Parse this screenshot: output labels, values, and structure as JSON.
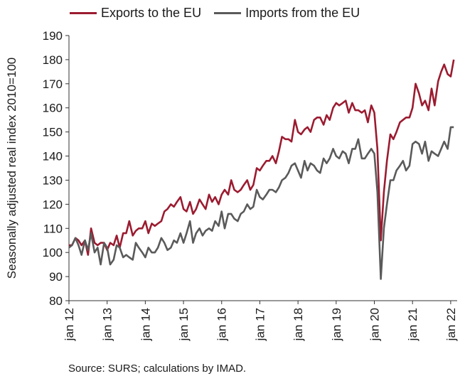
{
  "chart_data": {
    "type": "line",
    "ylabel": "Seasonally adjusted real index 2010=100",
    "ylim": [
      80,
      190
    ],
    "yticks": [
      80,
      90,
      100,
      110,
      120,
      130,
      140,
      150,
      160,
      170,
      180,
      190
    ],
    "xlim": [
      2012.0,
      2022.17
    ],
    "xticks": [
      {
        "label": "jan 12",
        "x": 2012
      },
      {
        "label": "jan 13",
        "x": 2013
      },
      {
        "label": "jan 14",
        "x": 2014
      },
      {
        "label": "jan 15",
        "x": 2015
      },
      {
        "label": "jan 16",
        "x": 2016
      },
      {
        "label": "jan 17",
        "x": 2017
      },
      {
        "label": "jan 18",
        "x": 2018
      },
      {
        "label": "jan 19",
        "x": 2019
      },
      {
        "label": "jan 20",
        "x": 2020
      },
      {
        "label": "jan 21",
        "x": 2021
      },
      {
        "label": "jan 22",
        "x": 2022
      }
    ],
    "grid": false,
    "legend_position": "top",
    "series": [
      {
        "name": "Exports to the EU",
        "color": "#9b1b30",
        "points": [
          [
            2012.0,
            103
          ],
          [
            2012.08,
            103
          ],
          [
            2012.17,
            106
          ],
          [
            2012.25,
            105
          ],
          [
            2012.33,
            103
          ],
          [
            2012.42,
            105
          ],
          [
            2012.5,
            99
          ],
          [
            2012.58,
            110
          ],
          [
            2012.67,
            104
          ],
          [
            2012.75,
            103
          ],
          [
            2012.83,
            104
          ],
          [
            2012.92,
            104
          ],
          [
            2013.0,
            101
          ],
          [
            2013.08,
            104
          ],
          [
            2013.17,
            103
          ],
          [
            2013.25,
            107
          ],
          [
            2013.33,
            102
          ],
          [
            2013.42,
            108
          ],
          [
            2013.5,
            108
          ],
          [
            2013.58,
            113
          ],
          [
            2013.67,
            107
          ],
          [
            2013.75,
            109
          ],
          [
            2013.83,
            110
          ],
          [
            2013.92,
            110
          ],
          [
            2014.0,
            113
          ],
          [
            2014.08,
            108
          ],
          [
            2014.17,
            112
          ],
          [
            2014.25,
            111
          ],
          [
            2014.33,
            112
          ],
          [
            2014.42,
            113
          ],
          [
            2014.5,
            117
          ],
          [
            2014.58,
            118
          ],
          [
            2014.67,
            120
          ],
          [
            2014.75,
            119
          ],
          [
            2014.83,
            121
          ],
          [
            2014.92,
            123
          ],
          [
            2015.0,
            118
          ],
          [
            2015.08,
            117
          ],
          [
            2015.17,
            121
          ],
          [
            2015.25,
            116
          ],
          [
            2015.33,
            118
          ],
          [
            2015.42,
            122
          ],
          [
            2015.5,
            120
          ],
          [
            2015.58,
            118
          ],
          [
            2015.67,
            124
          ],
          [
            2015.75,
            121
          ],
          [
            2015.83,
            123
          ],
          [
            2015.92,
            120
          ],
          [
            2016.0,
            124
          ],
          [
            2016.08,
            126
          ],
          [
            2016.17,
            124
          ],
          [
            2016.25,
            130
          ],
          [
            2016.33,
            126
          ],
          [
            2016.42,
            125
          ],
          [
            2016.5,
            126
          ],
          [
            2016.58,
            128
          ],
          [
            2016.67,
            130
          ],
          [
            2016.75,
            126
          ],
          [
            2016.83,
            128
          ],
          [
            2016.92,
            135
          ],
          [
            2017.0,
            134
          ],
          [
            2017.08,
            136
          ],
          [
            2017.17,
            138
          ],
          [
            2017.25,
            138
          ],
          [
            2017.33,
            140
          ],
          [
            2017.42,
            137
          ],
          [
            2017.5,
            142
          ],
          [
            2017.58,
            148
          ],
          [
            2017.67,
            147
          ],
          [
            2017.75,
            147
          ],
          [
            2017.83,
            146
          ],
          [
            2017.92,
            155
          ],
          [
            2018.0,
            150
          ],
          [
            2018.08,
            149
          ],
          [
            2018.17,
            151
          ],
          [
            2018.25,
            152
          ],
          [
            2018.33,
            150
          ],
          [
            2018.42,
            155
          ],
          [
            2018.5,
            156
          ],
          [
            2018.58,
            156
          ],
          [
            2018.67,
            153
          ],
          [
            2018.75,
            157
          ],
          [
            2018.83,
            155
          ],
          [
            2018.92,
            160
          ],
          [
            2019.0,
            162
          ],
          [
            2019.08,
            161
          ],
          [
            2019.17,
            162
          ],
          [
            2019.25,
            163
          ],
          [
            2019.33,
            158
          ],
          [
            2019.42,
            162
          ],
          [
            2019.5,
            159
          ],
          [
            2019.58,
            159
          ],
          [
            2019.67,
            158
          ],
          [
            2019.75,
            159
          ],
          [
            2019.83,
            154
          ],
          [
            2019.92,
            161
          ],
          [
            2020.0,
            158
          ],
          [
            2020.08,
            143
          ],
          [
            2020.17,
            105
          ],
          [
            2020.25,
            125
          ],
          [
            2020.33,
            138
          ],
          [
            2020.42,
            149
          ],
          [
            2020.5,
            147
          ],
          [
            2020.58,
            150
          ],
          [
            2020.67,
            154
          ],
          [
            2020.75,
            155
          ],
          [
            2020.83,
            156
          ],
          [
            2020.92,
            156
          ],
          [
            2021.0,
            160
          ],
          [
            2021.08,
            170
          ],
          [
            2021.17,
            166
          ],
          [
            2021.25,
            161
          ],
          [
            2021.33,
            163
          ],
          [
            2021.42,
            159
          ],
          [
            2021.5,
            168
          ],
          [
            2021.58,
            161
          ],
          [
            2021.67,
            171
          ],
          [
            2021.75,
            175
          ],
          [
            2021.83,
            178
          ],
          [
            2021.92,
            174
          ],
          [
            2022.0,
            173
          ],
          [
            2022.08,
            180
          ]
        ]
      },
      {
        "name": "Imports from the EU",
        "color": "#5a5a5a",
        "points": [
          [
            2012.0,
            102
          ],
          [
            2012.08,
            103
          ],
          [
            2012.17,
            106
          ],
          [
            2012.25,
            103
          ],
          [
            2012.33,
            99
          ],
          [
            2012.42,
            105
          ],
          [
            2012.5,
            101
          ],
          [
            2012.58,
            108
          ],
          [
            2012.67,
            100
          ],
          [
            2012.75,
            102
          ],
          [
            2012.83,
            95
          ],
          [
            2012.92,
            104
          ],
          [
            2013.0,
            102
          ],
          [
            2013.08,
            95
          ],
          [
            2013.17,
            97
          ],
          [
            2013.25,
            103
          ],
          [
            2013.33,
            102
          ],
          [
            2013.42,
            98
          ],
          [
            2013.5,
            99
          ],
          [
            2013.58,
            98
          ],
          [
            2013.67,
            97
          ],
          [
            2013.75,
            104
          ],
          [
            2013.83,
            102
          ],
          [
            2013.92,
            100
          ],
          [
            2014.0,
            98
          ],
          [
            2014.08,
            102
          ],
          [
            2014.17,
            100
          ],
          [
            2014.25,
            100
          ],
          [
            2014.33,
            102
          ],
          [
            2014.42,
            106
          ],
          [
            2014.5,
            104
          ],
          [
            2014.58,
            101
          ],
          [
            2014.67,
            102
          ],
          [
            2014.75,
            105
          ],
          [
            2014.83,
            104
          ],
          [
            2014.92,
            108
          ],
          [
            2015.0,
            104
          ],
          [
            2015.08,
            108
          ],
          [
            2015.17,
            113
          ],
          [
            2015.25,
            104
          ],
          [
            2015.33,
            108
          ],
          [
            2015.42,
            110
          ],
          [
            2015.5,
            107
          ],
          [
            2015.58,
            109
          ],
          [
            2015.67,
            110
          ],
          [
            2015.75,
            109
          ],
          [
            2015.83,
            113
          ],
          [
            2015.92,
            111
          ],
          [
            2016.0,
            117
          ],
          [
            2016.08,
            110
          ],
          [
            2016.17,
            116
          ],
          [
            2016.25,
            116
          ],
          [
            2016.33,
            114
          ],
          [
            2016.42,
            113
          ],
          [
            2016.5,
            116
          ],
          [
            2016.58,
            117
          ],
          [
            2016.67,
            120
          ],
          [
            2016.75,
            118
          ],
          [
            2016.83,
            119
          ],
          [
            2016.92,
            126
          ],
          [
            2017.0,
            123
          ],
          [
            2017.08,
            122
          ],
          [
            2017.17,
            124
          ],
          [
            2017.25,
            126
          ],
          [
            2017.33,
            126
          ],
          [
            2017.42,
            125
          ],
          [
            2017.5,
            127
          ],
          [
            2017.58,
            130
          ],
          [
            2017.67,
            131
          ],
          [
            2017.75,
            133
          ],
          [
            2017.83,
            136
          ],
          [
            2017.92,
            137
          ],
          [
            2018.0,
            134
          ],
          [
            2018.08,
            131
          ],
          [
            2018.17,
            138
          ],
          [
            2018.25,
            134
          ],
          [
            2018.33,
            137
          ],
          [
            2018.42,
            136
          ],
          [
            2018.5,
            134
          ],
          [
            2018.58,
            133
          ],
          [
            2018.67,
            139
          ],
          [
            2018.75,
            137
          ],
          [
            2018.83,
            139
          ],
          [
            2018.92,
            143
          ],
          [
            2019.0,
            140
          ],
          [
            2019.08,
            139
          ],
          [
            2019.17,
            142
          ],
          [
            2019.25,
            141
          ],
          [
            2019.33,
            137
          ],
          [
            2019.42,
            143
          ],
          [
            2019.5,
            143
          ],
          [
            2019.58,
            147
          ],
          [
            2019.67,
            139
          ],
          [
            2019.75,
            139
          ],
          [
            2019.83,
            141
          ],
          [
            2019.92,
            143
          ],
          [
            2020.0,
            141
          ],
          [
            2020.08,
            125
          ],
          [
            2020.17,
            89
          ],
          [
            2020.25,
            110
          ],
          [
            2020.33,
            120
          ],
          [
            2020.42,
            130
          ],
          [
            2020.5,
            130
          ],
          [
            2020.58,
            134
          ],
          [
            2020.67,
            136
          ],
          [
            2020.75,
            138
          ],
          [
            2020.83,
            134
          ],
          [
            2020.92,
            136
          ],
          [
            2021.0,
            145
          ],
          [
            2021.08,
            146
          ],
          [
            2021.17,
            145
          ],
          [
            2021.25,
            141
          ],
          [
            2021.33,
            146
          ],
          [
            2021.42,
            138
          ],
          [
            2021.5,
            142
          ],
          [
            2021.58,
            141
          ],
          [
            2021.67,
            140
          ],
          [
            2021.75,
            143
          ],
          [
            2021.83,
            146
          ],
          [
            2021.92,
            143
          ],
          [
            2022.0,
            152
          ],
          [
            2022.08,
            152
          ]
        ]
      }
    ]
  },
  "legend": {
    "exports_label": "Exports to the EU",
    "imports_label": "Imports from the EU"
  },
  "source_text": "Source: SURS; calculations by IMAD."
}
